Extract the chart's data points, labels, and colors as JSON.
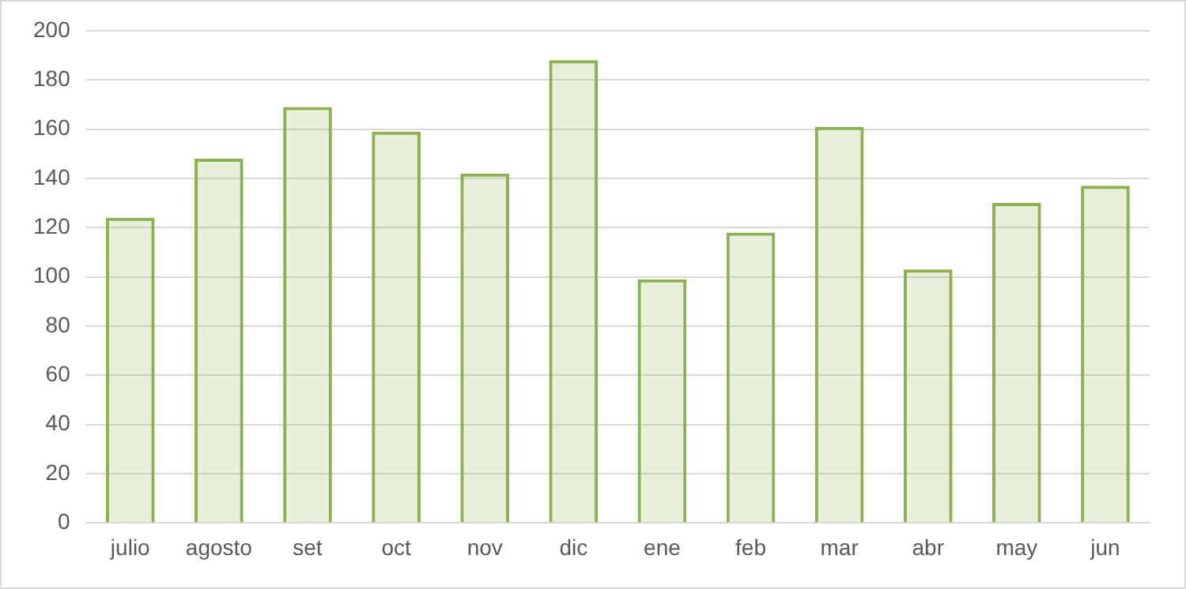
{
  "chart_data": {
    "type": "bar",
    "categories": [
      "julio",
      "agosto",
      "set",
      "oct",
      "nov",
      "dic",
      "ene",
      "feb",
      "mar",
      "abr",
      "may",
      "jun"
    ],
    "values": [
      124,
      148,
      169,
      159,
      142,
      188,
      99,
      118,
      161,
      103,
      130,
      137
    ],
    "color": "#8db050",
    "ylim": [
      0,
      200
    ],
    "yticks": [
      0,
      20,
      40,
      60,
      80,
      100,
      120,
      140,
      160,
      180,
      200
    ],
    "grid": "y",
    "legend": false
  }
}
